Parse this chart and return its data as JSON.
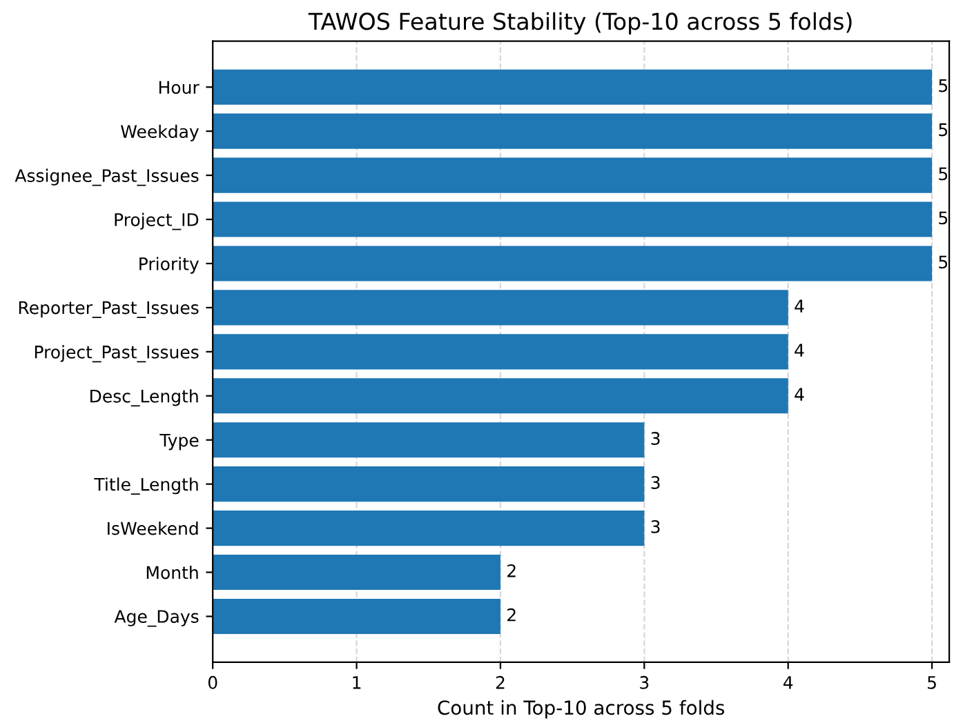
{
  "chart_data": {
    "type": "bar",
    "orientation": "horizontal",
    "title": "TAWOS Feature Stability (Top-10 across 5 folds)",
    "xlabel": "Count in Top-10 across 5 folds",
    "categories": [
      "Hour",
      "Weekday",
      "Assignee_Past_Issues",
      "Project_ID",
      "Priority",
      "Reporter_Past_Issues",
      "Project_Past_Issues",
      "Desc_Length",
      "Type",
      "Title_Length",
      "IsWeekend",
      "Month",
      "Age_Days"
    ],
    "values": [
      5,
      5,
      5,
      5,
      5,
      4,
      4,
      4,
      3,
      3,
      3,
      2,
      2
    ],
    "color": "#1f77b4",
    "xlim": [
      0,
      5.12
    ],
    "xticks": [
      0,
      1,
      2,
      3,
      4,
      5
    ],
    "grid": "x",
    "data_labels": true,
    "legend": false
  }
}
